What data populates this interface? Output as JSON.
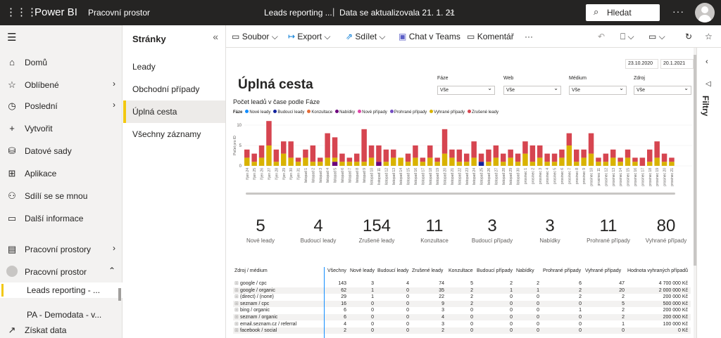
{
  "topbar": {
    "app_name": "Power BI",
    "workspace": "Pracovní prostor",
    "report_name": "Leads reporting ...",
    "separator": "|",
    "data_updated": "Data se aktualizovala 21. 1. 21",
    "search_placeholder": "Hledat",
    "more": "···"
  },
  "nav": {
    "items": [
      {
        "label": "Domů",
        "icon": "⌂",
        "arrow": ""
      },
      {
        "label": "Oblíbené",
        "icon": "☆",
        "arrow": "›"
      },
      {
        "label": "Poslední",
        "icon": "◷",
        "arrow": "›"
      },
      {
        "label": "Vytvořit",
        "icon": "+",
        "arrow": ""
      },
      {
        "label": "Datové sady",
        "icon": "⛁",
        "arrow": ""
      },
      {
        "label": "Aplikace",
        "icon": "⊞",
        "arrow": ""
      },
      {
        "label": "Sdílí se se mnou",
        "icon": "⚇",
        "arrow": ""
      },
      {
        "label": "Další informace",
        "icon": "▭",
        "arrow": ""
      },
      {
        "label": "Pracovní prostory",
        "icon": "▤",
        "arrow": "›"
      },
      {
        "label": "Pracovní prostor",
        "icon": "●",
        "arrow": "⌃"
      }
    ],
    "sub_items": [
      "Leads reporting - ...",
      "PA - Demodata - v..."
    ],
    "get_data": "Získat data"
  },
  "pages": {
    "header": "Stránky",
    "items": [
      "Leady",
      "Obchodní případy",
      "Úplná cesta",
      "Všechny záznamy"
    ],
    "selected": 2
  },
  "toolbar": {
    "file": "Soubor",
    "export": "Export",
    "share": "Sdílet",
    "teams": "Chat v Teams",
    "comment": "Komentář",
    "more": "···"
  },
  "filters_label": "Filtry",
  "report": {
    "date_from": "23.10.2020",
    "date_to": "20.1.2021",
    "title": "Úplná cesta",
    "slicers": [
      {
        "label": "Fáze",
        "value": "Vše"
      },
      {
        "label": "Web",
        "value": "Vše"
      },
      {
        "label": "Médium",
        "value": "Vše"
      },
      {
        "label": "Zdroj",
        "value": "Vše"
      }
    ],
    "chart_title": "Počet leadů v čase podle Fáze",
    "kpis": [
      {
        "value": "5",
        "label": "Nové leady"
      },
      {
        "value": "4",
        "label": "Budoucí leady"
      },
      {
        "value": "154",
        "label": "Zrušené leady"
      },
      {
        "value": "11",
        "label": "Konzultace"
      },
      {
        "value": "3",
        "label": "Budoucí případy"
      },
      {
        "value": "3",
        "label": "Nabídky"
      },
      {
        "value": "11",
        "label": "Prohrané případy"
      },
      {
        "value": "80",
        "label": "Vyhrané případy"
      }
    ]
  },
  "table": {
    "headers": [
      "Zdroj / médium",
      "Všechny",
      "Nové leady",
      "Budoucí leady",
      "Zrušené leady",
      "Konzultace",
      "Budoucí případy",
      "Nabídky",
      "Prohrané případy",
      "Vyhrané případy",
      "Hodnota vyhraných případů"
    ],
    "rows": [
      [
        "google / cpc",
        "143",
        "3",
        "4",
        "74",
        "5",
        "2",
        "2",
        "6",
        "47",
        "4 700 000 Kč"
      ],
      [
        "google / organic",
        "62",
        "1",
        "0",
        "35",
        "2",
        "1",
        "1",
        "2",
        "20",
        "2 000 000 Kč"
      ],
      [
        "(direct) / (none)",
        "29",
        "1",
        "0",
        "22",
        "2",
        "0",
        "0",
        "2",
        "2",
        "200 000 Kč"
      ],
      [
        "seznam / cpc",
        "16",
        "0",
        "0",
        "9",
        "2",
        "0",
        "0",
        "0",
        "5",
        "500 000 Kč"
      ],
      [
        "bing / organic",
        "6",
        "0",
        "0",
        "3",
        "0",
        "0",
        "0",
        "1",
        "2",
        "200 000 Kč"
      ],
      [
        "seznam / organic",
        "6",
        "0",
        "0",
        "4",
        "0",
        "0",
        "0",
        "0",
        "2",
        "200 000 Kč"
      ],
      [
        "email.seznam.cz / referral",
        "4",
        "0",
        "0",
        "3",
        "0",
        "0",
        "0",
        "0",
        "1",
        "100 000 Kč"
      ],
      [
        "facebook / social",
        "2",
        "0",
        "0",
        "2",
        "0",
        "0",
        "0",
        "0",
        "0",
        "0 Kč"
      ]
    ]
  },
  "chart_data": {
    "type": "bar",
    "stacked": true,
    "title": "Počet leadů v čase podle Fáze",
    "legend_title": "Fáze",
    "ylabel": "Počet pro ID",
    "ylim": [
      0,
      10
    ],
    "yticks": [
      "10",
      "5",
      "0"
    ],
    "legend_position": "top",
    "series": [
      {
        "name": "Nové leady",
        "color": "#118dff"
      },
      {
        "name": "Budoucí leady",
        "color": "#12239e"
      },
      {
        "name": "Konzultace",
        "color": "#e66c37"
      },
      {
        "name": "Nabídky",
        "color": "#6b007b"
      },
      {
        "name": "Nové případy",
        "color": "#e044a7"
      },
      {
        "name": "Prohrané případy",
        "color": "#744ec2"
      },
      {
        "name": "Vyhrané případy",
        "color": "#d9b300"
      },
      {
        "name": "Zrušené leady",
        "color": "#d64550"
      }
    ],
    "category_labels": [
      "říjen 24",
      "říjen 25",
      "říjen 26",
      "říjen 27",
      "říjen 28",
      "říjen 29",
      "říjen 30",
      "říjen 31",
      "listopad 1",
      "listopad 2",
      "listopad 3",
      "listopad 4",
      "listopad 5",
      "listopad 6",
      "listopad 7",
      "listopad 8",
      "listopad 9",
      "listopad 10",
      "listopad 11",
      "listopad 12",
      "listopad 13",
      "listopad 14",
      "listopad 15",
      "listopad 16",
      "listopad 17",
      "listopad 18",
      "listopad 19",
      "listopad 20",
      "listopad 21",
      "listopad 22",
      "listopad 23",
      "listopad 24",
      "listopad 25",
      "listopad 26",
      "listopad 27",
      "listopad 28",
      "listopad 29",
      "listopad 30",
      "prosinec 1",
      "prosinec 2",
      "prosinec 3",
      "prosinec 4",
      "prosinec 5",
      "prosinec 6",
      "prosinec 7",
      "prosinec 8",
      "prosinec 9",
      "prosinec 10",
      "prosinec 11",
      "prosinec 12",
      "prosinec 13",
      "prosinec 14",
      "prosinec 15",
      "prosinec 16",
      "prosinec 17",
      "prosinec 18",
      "prosinec 19",
      "prosinec 20",
      "prosinec 21"
    ],
    "stacks": [
      [
        0,
        0,
        0,
        0,
        0,
        0,
        2,
        2
      ],
      [
        0,
        0,
        0,
        0,
        0,
        0,
        1,
        2
      ],
      [
        0,
        0,
        0,
        0,
        0,
        0,
        2,
        3
      ],
      [
        0,
        0,
        0,
        0,
        0,
        0,
        5,
        6
      ],
      [
        0,
        0,
        0,
        0,
        0,
        0,
        1,
        3
      ],
      [
        0,
        0,
        0,
        0,
        0,
        0,
        3,
        3
      ],
      [
        0,
        0,
        0,
        0,
        0,
        0,
        2,
        4
      ],
      [
        0,
        0,
        0,
        0,
        0,
        0,
        1,
        1
      ],
      [
        0,
        0,
        0,
        0,
        0,
        0,
        2,
        2
      ],
      [
        0,
        0,
        0,
        0,
        0,
        0,
        1,
        4
      ],
      [
        0,
        0,
        0,
        0,
        0,
        0,
        1,
        1
      ],
      [
        0,
        0,
        0,
        0,
        0,
        0,
        2,
        6
      ],
      [
        0,
        0,
        0,
        1,
        0,
        0,
        1,
        5
      ],
      [
        0,
        0,
        0,
        0,
        0,
        0,
        1,
        2
      ],
      [
        0,
        0,
        0,
        0,
        0,
        0,
        1,
        1
      ],
      [
        0,
        0,
        0,
        0,
        0,
        0,
        1,
        2
      ],
      [
        0,
        0,
        0,
        0,
        0,
        0,
        1,
        8
      ],
      [
        0,
        0,
        0,
        0,
        0,
        0,
        2,
        3
      ],
      [
        0,
        0,
        0,
        1,
        0,
        0,
        0,
        4
      ],
      [
        0,
        0,
        0,
        0,
        0,
        0,
        1,
        3
      ],
      [
        0,
        0,
        0,
        0,
        0,
        0,
        2,
        2
      ],
      [
        0,
        0,
        0,
        0,
        0,
        0,
        2,
        0
      ],
      [
        0,
        0,
        0,
        0,
        0,
        0,
        1,
        2
      ],
      [
        0,
        0,
        0,
        0,
        0,
        0,
        2,
        3
      ],
      [
        0,
        0,
        0,
        0,
        0,
        0,
        1,
        1
      ],
      [
        0,
        0,
        0,
        0,
        0,
        0,
        2,
        3
      ],
      [
        0,
        0,
        0,
        0,
        0,
        0,
        1,
        1
      ],
      [
        0,
        0,
        0,
        0,
        0,
        0,
        3,
        6
      ],
      [
        0,
        0,
        0,
        0,
        0,
        0,
        2,
        2
      ],
      [
        0,
        0,
        0,
        0,
        0,
        0,
        1,
        3
      ],
      [
        0,
        0,
        0,
        0,
        0,
        0,
        1,
        2
      ],
      [
        0,
        0,
        0,
        0,
        0,
        0,
        2,
        4
      ],
      [
        0,
        1,
        0,
        0,
        0,
        0,
        0,
        2
      ],
      [
        0,
        0,
        0,
        0,
        0,
        0,
        1,
        3
      ],
      [
        0,
        0,
        0,
        0,
        0,
        0,
        2,
        3
      ],
      [
        0,
        0,
        0,
        0,
        0,
        0,
        1,
        2
      ],
      [
        0,
        0,
        0,
        0,
        0,
        0,
        2,
        2
      ],
      [
        0,
        0,
        0,
        0,
        0,
        0,
        1,
        2
      ],
      [
        0,
        0,
        0,
        0,
        0,
        0,
        3,
        3
      ],
      [
        0,
        0,
        0,
        0,
        0,
        0,
        1,
        4
      ],
      [
        0,
        0,
        0,
        0,
        0,
        0,
        2,
        3
      ],
      [
        0,
        0,
        0,
        0,
        0,
        0,
        1,
        2
      ],
      [
        0,
        0,
        0,
        0,
        0,
        0,
        1,
        2
      ],
      [
        0,
        0,
        0,
        0,
        0,
        0,
        2,
        2
      ],
      [
        0,
        0,
        0,
        0,
        0,
        0,
        5,
        3
      ],
      [
        0,
        0,
        0,
        0,
        0,
        0,
        1,
        3
      ],
      [
        0,
        0,
        0,
        0,
        0,
        0,
        2,
        2
      ],
      [
        0,
        0,
        0,
        0,
        0,
        0,
        3,
        5
      ],
      [
        0,
        0,
        0,
        0,
        0,
        0,
        1,
        1
      ],
      [
        0,
        0,
        0,
        0,
        0,
        0,
        1,
        2
      ],
      [
        0,
        0,
        0,
        0,
        0,
        0,
        2,
        2
      ],
      [
        0,
        0,
        0,
        0,
        0,
        0,
        1,
        1
      ],
      [
        0,
        0,
        0,
        0,
        0,
        0,
        2,
        2
      ],
      [
        0,
        0,
        0,
        0,
        0,
        0,
        1,
        1
      ],
      [
        0,
        0,
        0,
        0,
        0,
        0,
        0,
        2
      ],
      [
        0,
        0,
        0,
        0,
        0,
        0,
        1,
        3
      ],
      [
        0,
        0,
        0,
        0,
        0,
        0,
        2,
        4
      ],
      [
        0,
        0,
        0,
        0,
        0,
        0,
        1,
        2
      ],
      [
        0,
        0,
        0,
        0,
        0,
        0,
        1,
        1
      ]
    ]
  },
  "colors": {
    "accent": "#f2c811",
    "topbar": "#252423"
  }
}
